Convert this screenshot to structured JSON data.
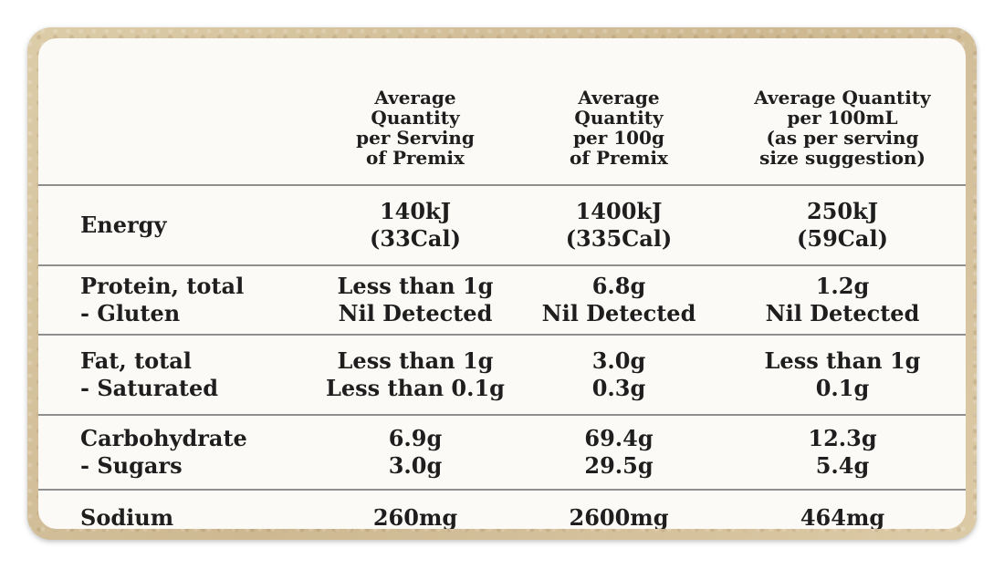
{
  "header": {
    "col0": "",
    "col1": "Average\nQuantity\nper Serving\nof Premix",
    "col2": "Average\nQuantity\nper 100g\nof Premix",
    "col3": "Average Quantity\nper 100mL\n(as per serving\nsize suggestion)"
  },
  "rows": [
    {
      "name": "Energy",
      "v1": "140kJ\n(33Cal)",
      "v2": "1400kJ\n(335Cal)",
      "v3": "250kJ\n(59Cal)"
    },
    {
      "name": "Protein, total\n      - Gluten",
      "v1": "Less than 1g\nNil Detected",
      "v2": "6.8g\nNil Detected",
      "v3": "1.2g\nNil Detected"
    },
    {
      "name": "Fat, total\n      - Saturated",
      "v1": "Less than 1g\nLess than 0.1g",
      "v2": "3.0g\n0.3g",
      "v3": "Less than 1g\n0.1g"
    },
    {
      "name": "Carbohydrate\n      - Sugars",
      "v1": "6.9g\n3.0g",
      "v2": "69.4g\n29.5g",
      "v3": "12.3g\n5.4g"
    },
    {
      "name": "Sodium",
      "v1": "260mg",
      "v2": "2600mg",
      "v3": "464mg"
    }
  ]
}
